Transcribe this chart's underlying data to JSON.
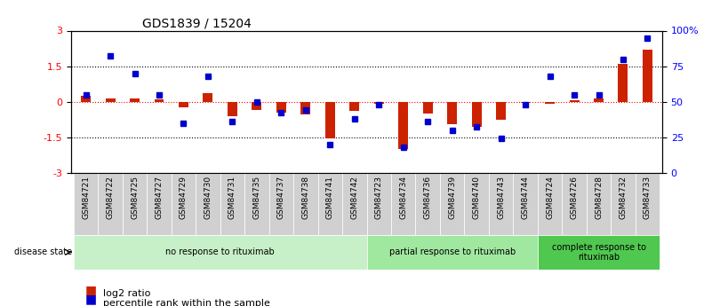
{
  "title": "GDS1839 / 15204",
  "samples": [
    "GSM84721",
    "GSM84722",
    "GSM84725",
    "GSM84727",
    "GSM84729",
    "GSM84730",
    "GSM84731",
    "GSM84735",
    "GSM84737",
    "GSM84738",
    "GSM84741",
    "GSM84742",
    "GSM84723",
    "GSM84734",
    "GSM84736",
    "GSM84739",
    "GSM84740",
    "GSM84743",
    "GSM84744",
    "GSM84724",
    "GSM84726",
    "GSM84728",
    "GSM84732",
    "GSM84733"
  ],
  "log2_ratio": [
    0.25,
    0.15,
    0.12,
    0.08,
    -0.25,
    0.35,
    -0.6,
    -0.35,
    -0.45,
    -0.55,
    -1.55,
    -0.4,
    -0.08,
    -2.0,
    -0.5,
    -0.95,
    -1.05,
    -0.75,
    -0.05,
    -0.1,
    0.05,
    0.15,
    1.6,
    2.2
  ],
  "percentile_rank": [
    55,
    82,
    70,
    55,
    35,
    68,
    36,
    50,
    42,
    44,
    20,
    38,
    48,
    18,
    36,
    30,
    32,
    24,
    48,
    68,
    55,
    55,
    80,
    95
  ],
  "groups": [
    {
      "label": "no response to rituximab",
      "start": 0,
      "end": 12,
      "color": "#c8f0c8"
    },
    {
      "label": "partial response to rituximab",
      "start": 12,
      "end": 19,
      "color": "#a0e8a0"
    },
    {
      "label": "complete response to\nrituximab",
      "start": 19,
      "end": 24,
      "color": "#50c850"
    }
  ],
  "bar_color_red": "#cc2200",
  "bar_color_blue": "#0000cc",
  "ylim_left": [
    -3,
    3
  ],
  "ylim_right": [
    0,
    100
  ],
  "yticks_left": [
    -3,
    -1.5,
    0,
    1.5,
    3
  ],
  "yticks_right": [
    0,
    25,
    50,
    75,
    100
  ],
  "ytick_labels_right": [
    "0",
    "25",
    "50",
    "75",
    "100%"
  ],
  "hlines": [
    -1.5,
    0,
    1.5
  ],
  "background_color": "#ffffff"
}
